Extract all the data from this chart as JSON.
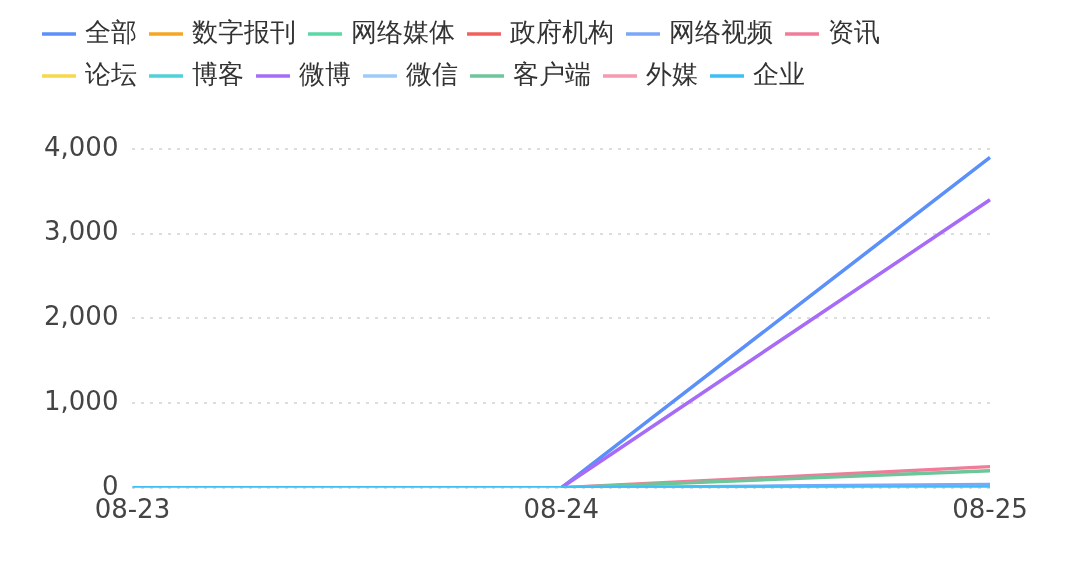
{
  "chart_data": {
    "type": "line",
    "categories": [
      "08-23",
      "08-24",
      "08-25"
    ],
    "series": [
      {
        "name": "全部",
        "color": "#5b8ff9",
        "values": [
          null,
          0,
          3900
        ]
      },
      {
        "name": "数字报刊",
        "color": "#f6a623",
        "values": [
          null,
          null,
          null
        ]
      },
      {
        "name": "网络媒体",
        "color": "#5ad8a6",
        "values": [
          null,
          null,
          null
        ]
      },
      {
        "name": "政府机构",
        "color": "#f0605d",
        "values": [
          null,
          null,
          null
        ]
      },
      {
        "name": "网络视频",
        "color": "#7aa7f7",
        "values": [
          null,
          0,
          40
        ]
      },
      {
        "name": "资讯",
        "color": "#f07c9a",
        "values": [
          null,
          0,
          250
        ]
      },
      {
        "name": "论坛",
        "color": "#f6d84b",
        "values": [
          null,
          null,
          null
        ]
      },
      {
        "name": "博客",
        "color": "#4fd1d9",
        "values": [
          null,
          null,
          null
        ]
      },
      {
        "name": "微博",
        "color": "#a66cf7",
        "values": [
          null,
          0,
          3400
        ]
      },
      {
        "name": "微信",
        "color": "#9ccbfa",
        "values": [
          null,
          null,
          null
        ]
      },
      {
        "name": "客户端",
        "color": "#6cc69a",
        "values": [
          null,
          0,
          200
        ]
      },
      {
        "name": "外媒",
        "color": "#f59ab0",
        "values": [
          null,
          null,
          null
        ]
      },
      {
        "name": "企业",
        "color": "#3dbff5",
        "values": [
          0,
          0,
          0
        ]
      }
    ],
    "ylim": [
      0,
      4000
    ],
    "yticks": [
      0,
      {
        "value": 1000,
        "label": "1,000"
      },
      {
        "value": 2000,
        "label": "2,000"
      },
      {
        "value": 3000,
        "label": "3,000"
      },
      {
        "value": 4000,
        "label": "4,000"
      }
    ],
    "grid": "y",
    "legend": "top",
    "marker": "none",
    "line_style": "solid"
  }
}
